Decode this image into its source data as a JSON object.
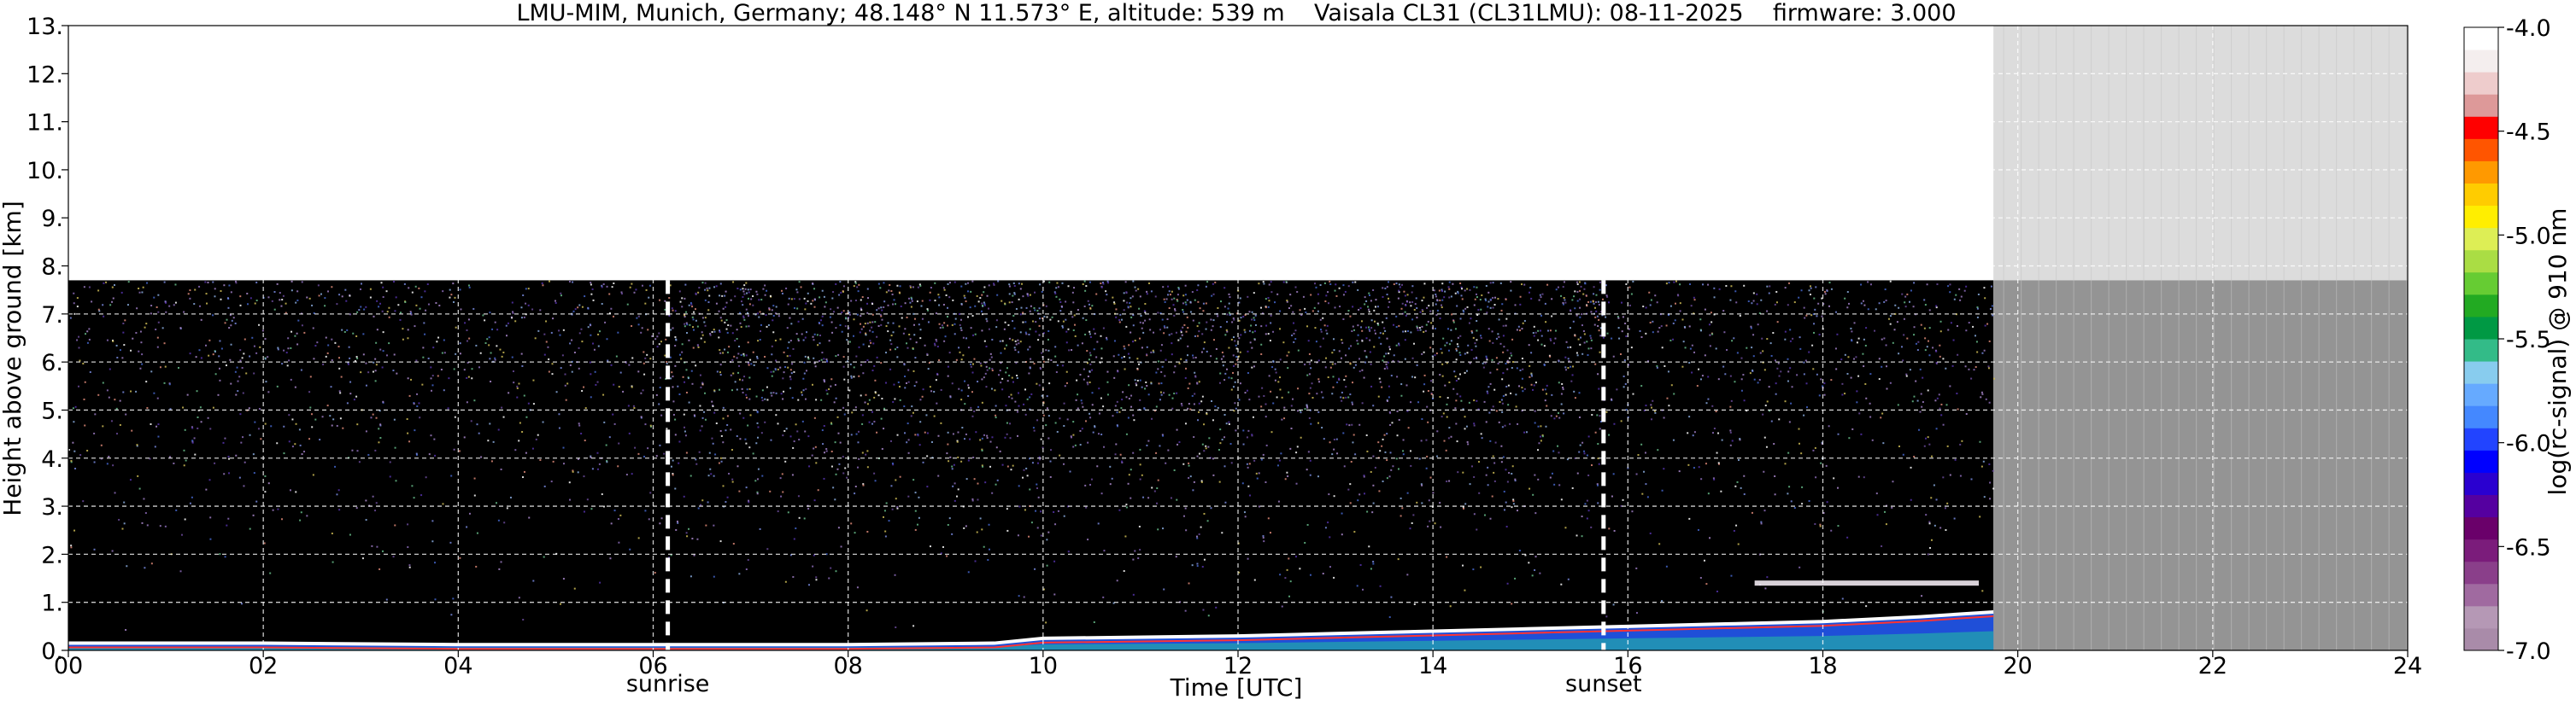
{
  "chart_data": {
    "type": "heatmap",
    "title": "LMU-MIM, Munich, Germany; 48.148° N 11.573° E, altitude: 539 m    Vaisala CL31 (CL31LMU): 08-11-2025    firmware: 3.000",
    "xlabel": "Time [UTC]",
    "ylabel": "Height above ground [km]",
    "xlim": [
      0,
      24
    ],
    "ylim": [
      0,
      13
    ],
    "x_ticks": [
      0,
      2,
      4,
      6,
      8,
      10,
      12,
      14,
      16,
      18,
      20,
      22,
      24
    ],
    "x_tick_labels": [
      "00",
      "02",
      "04",
      "06",
      "08",
      "10",
      "12",
      "14",
      "16",
      "18",
      "20",
      "22",
      "24"
    ],
    "y_ticks": [
      0,
      1,
      2,
      3,
      4,
      5,
      6,
      7,
      8,
      9,
      10,
      11,
      12,
      13
    ],
    "y_tick_labels": [
      "0.",
      "1.",
      "2.",
      "3.",
      "4.",
      "5.",
      "6.",
      "7.",
      "8.",
      "9.",
      "10.",
      "11.",
      "12.",
      "13."
    ],
    "grid": true,
    "data_top_km": 7.7,
    "data_end_hour": 19.75,
    "markers": [
      {
        "label": "sunrise",
        "x": 6.15
      },
      {
        "label": "sunset",
        "x": 15.75
      }
    ],
    "features": {
      "surface_layer": [
        [
          0,
          0.15
        ],
        [
          2,
          0.15
        ],
        [
          4,
          0.12
        ],
        [
          6,
          0.12
        ],
        [
          8,
          0.12
        ],
        [
          9.5,
          0.15
        ],
        [
          10,
          0.25
        ],
        [
          12,
          0.3
        ],
        [
          13,
          0.35
        ],
        [
          14,
          0.4
        ],
        [
          15,
          0.45
        ],
        [
          16,
          0.5
        ],
        [
          17,
          0.55
        ],
        [
          18,
          0.6
        ],
        [
          19,
          0.7
        ],
        [
          19.75,
          0.8
        ]
      ],
      "elevated_layer": {
        "x_start": 17.3,
        "x_end": 19.6,
        "height_km": 1.4
      }
    },
    "colorbar": {
      "label": "log(rc-signal) @ 910 nm",
      "range": [
        -7.0,
        -4.0
      ],
      "ticks": [
        -7.0,
        -6.5,
        -6.0,
        -5.5,
        -5.0,
        -4.5,
        -4.0
      ],
      "tick_labels": [
        "-7.0",
        "-6.5",
        "-6.0",
        "-5.5",
        "-5.0",
        "-4.5",
        "-4.0"
      ],
      "colors": [
        "#a98ba9",
        "#b598b5",
        "#a06aa0",
        "#8a3f8a",
        "#7b1c7b",
        "#6a006a",
        "#5500a0",
        "#2a00d0",
        "#0000ff",
        "#2244ff",
        "#4488ff",
        "#66aaff",
        "#88ccee",
        "#33bb88",
        "#009944",
        "#22aa22",
        "#66cc33",
        "#aadd44",
        "#ddee55",
        "#ffee00",
        "#ffcc00",
        "#ff9900",
        "#ff5500",
        "#ff0000",
        "#dd9999",
        "#eecccc",
        "#f4eeee",
        "#ffffff"
      ]
    }
  }
}
